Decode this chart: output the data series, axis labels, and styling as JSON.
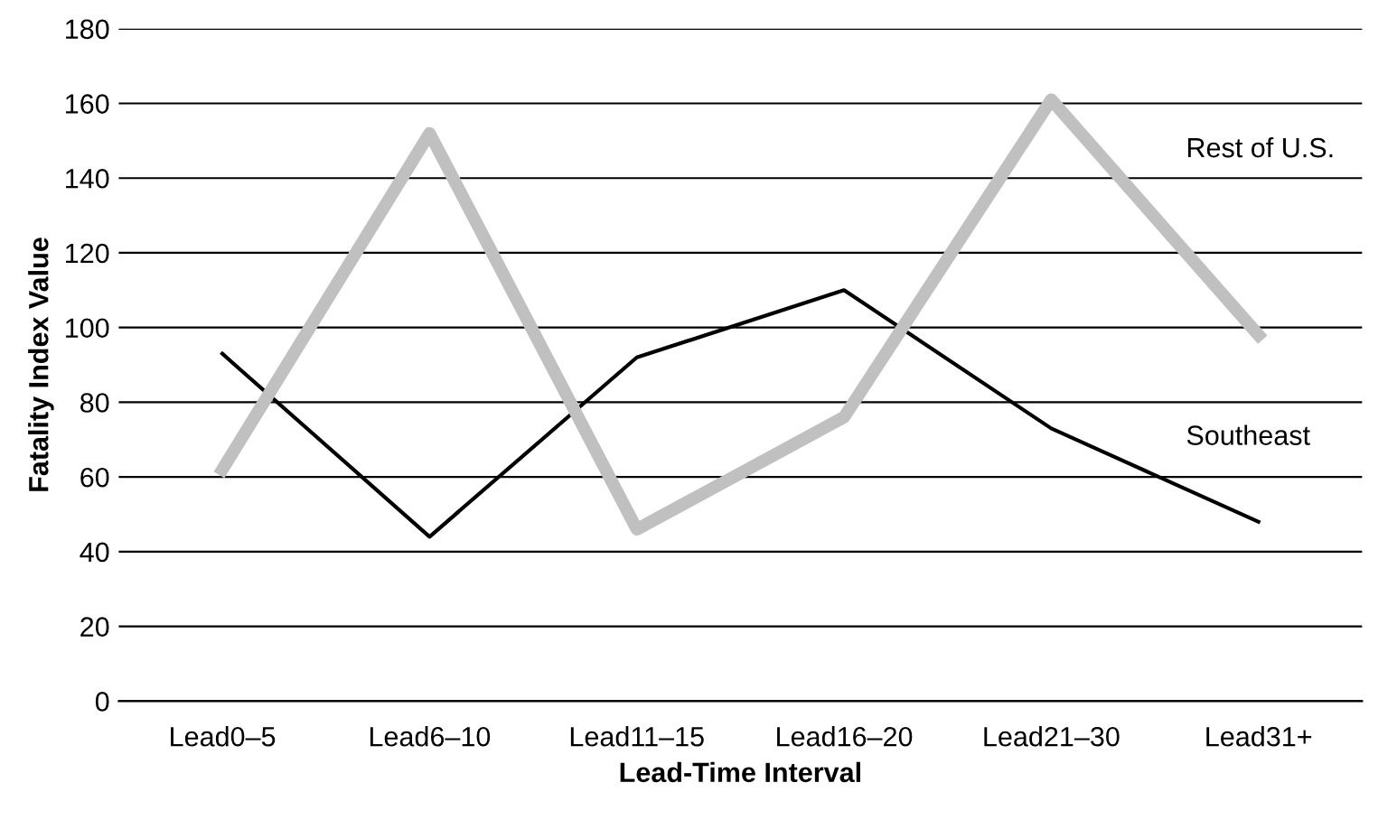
{
  "chart_data": {
    "type": "line",
    "xlabel": "Lead-Time Interval",
    "ylabel": "Fatality Index Value",
    "categories": [
      "Lead0–5",
      "Lead6–10",
      "Lead11–15",
      "Lead16–20",
      "Lead21–30",
      "Lead31+"
    ],
    "series": [
      {
        "name": "Rest of U.S.",
        "color": "#c0c0c0",
        "values": [
          62,
          152,
          46,
          76,
          161,
          98
        ]
      },
      {
        "name": "Southeast",
        "color": "#000000",
        "values": [
          93,
          44,
          92,
          110,
          73,
          48
        ]
      }
    ],
    "ylim": [
      0,
      180
    ],
    "yticks": [
      0,
      20,
      40,
      60,
      80,
      100,
      120,
      140,
      160,
      180
    ],
    "grid": "y",
    "legend": false,
    "marker": "none",
    "line_style": "solid"
  }
}
